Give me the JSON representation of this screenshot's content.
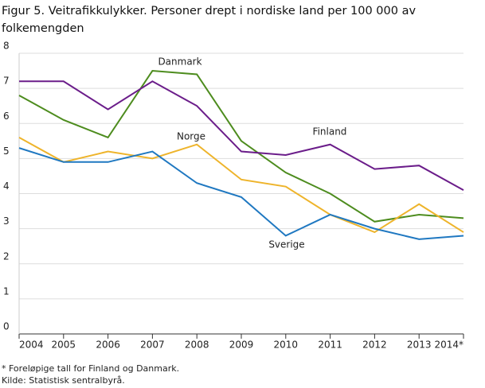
{
  "chart_data": {
    "type": "line",
    "title_lines": [
      "Figur 5. Veitrafikkulykker. Personer drept i nordiske land per 100 000 av",
      "folkemengden"
    ],
    "categories": [
      "2004",
      "2005",
      "2006",
      "2007",
      "2008",
      "2009",
      "2010",
      "2011",
      "2012",
      "2013",
      "2014*"
    ],
    "series": [
      {
        "name": "Danmark",
        "color": "#4d8c1e",
        "values": [
          6.8,
          6.1,
          5.6,
          7.5,
          7.4,
          5.5,
          4.6,
          4.0,
          3.2,
          3.4,
          3.3
        ]
      },
      {
        "name": "Finland",
        "color": "#6b1d8a",
        "values": [
          7.2,
          7.2,
          6.4,
          7.2,
          6.5,
          5.2,
          5.1,
          5.4,
          4.7,
          4.8,
          4.1
        ]
      },
      {
        "name": "Norge",
        "color": "#eeb42b",
        "values": [
          5.6,
          4.9,
          5.2,
          5.0,
          5.4,
          4.4,
          4.2,
          3.4,
          2.9,
          3.7,
          2.9
        ]
      },
      {
        "name": "Sverige",
        "color": "#1f78c1",
        "values": [
          5.3,
          4.9,
          4.9,
          5.2,
          4.3,
          3.9,
          2.8,
          3.4,
          3.0,
          2.7,
          2.8
        ]
      }
    ],
    "ylim": [
      0,
      8
    ],
    "yticks": [
      0,
      1,
      2,
      3,
      4,
      5,
      6,
      7,
      8
    ],
    "grid": true,
    "footnotes": [
      "* Foreløpige tall for Finland og Danmark.",
      "Kilde: Statistisk sentralbyrå."
    ]
  }
}
